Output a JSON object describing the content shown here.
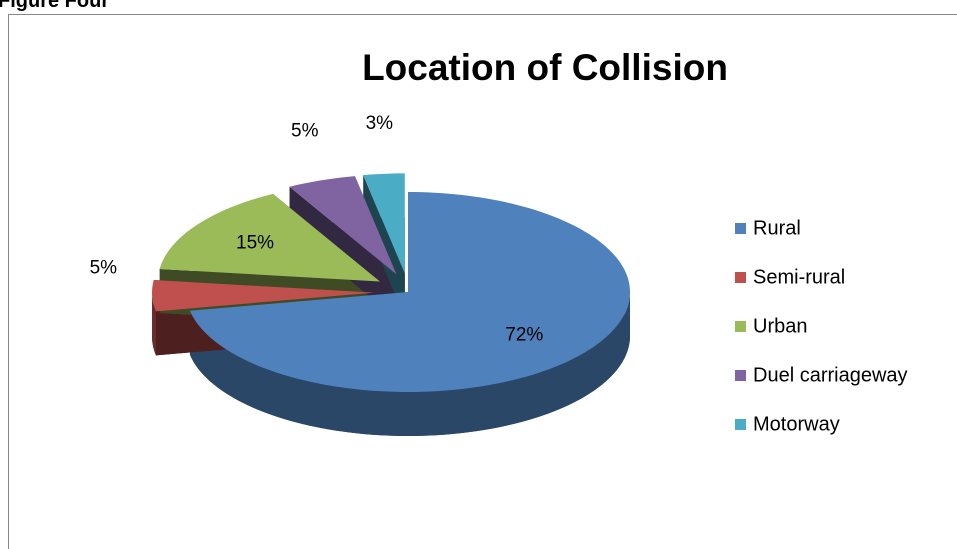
{
  "heading": "Figure Four",
  "chart_data": {
    "type": "pie",
    "title": "Location of Collision",
    "categories": [
      "Rural",
      "Semi-rural",
      "Urban",
      "Duel carriageway",
      "Motorway"
    ],
    "values": [
      72,
      5,
      15,
      5,
      3
    ],
    "value_labels": [
      "72%",
      "5%",
      "15%",
      "5%",
      "3%"
    ],
    "colors": [
      "#4f81bd",
      "#c0504d",
      "#9bbb59",
      "#8064a2",
      "#4bacc6"
    ],
    "legend": "right"
  }
}
